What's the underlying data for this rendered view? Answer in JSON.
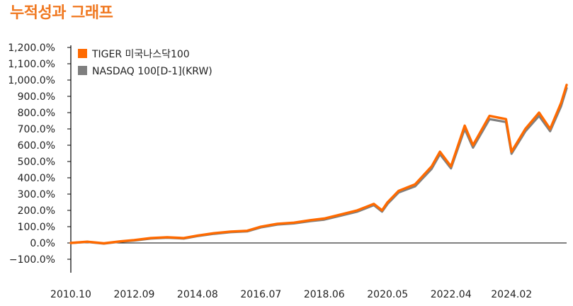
{
  "title": "누적성과 그래프",
  "colors": {
    "title": "#f07820",
    "tiger": "#ff6a00",
    "nasdaq": "#7f7f7f",
    "axis": "#000000"
  },
  "chart_data": {
    "type": "line",
    "title": "누적성과 그래프",
    "xlabel": "",
    "ylabel": "",
    "ylim": [
      -100,
      1200
    ],
    "xlim": [
      "2010.10",
      "2025.10"
    ],
    "y_ticks": [
      1200,
      1100,
      1000,
      900,
      800,
      700,
      600,
      500,
      400,
      300,
      200,
      100,
      0,
      -100
    ],
    "y_tick_labels": [
      "1,200.0%",
      "1,100.0%",
      "1,000.0%",
      "900.0%",
      "800.0%",
      "700.0%",
      "600.0%",
      "500.0%",
      "400.0%",
      "300.0%",
      "200.0%",
      "100.0%",
      "0.0%",
      "−100.0%"
    ],
    "x_tick_labels": [
      "2010.10",
      "2012.09",
      "2014.08",
      "2016.07",
      "2018.06",
      "2020.05",
      "2022.04",
      "2024.02"
    ],
    "grid": false,
    "legend_position": "top-left",
    "x": [
      "2010.10",
      "2011.04",
      "2011.10",
      "2012.04",
      "2012.09",
      "2013.03",
      "2013.09",
      "2014.03",
      "2014.08",
      "2015.02",
      "2015.08",
      "2016.02",
      "2016.07",
      "2017.01",
      "2017.07",
      "2018.01",
      "2018.06",
      "2018.12",
      "2019.06",
      "2019.12",
      "2020.03",
      "2020.05",
      "2020.09",
      "2021.03",
      "2021.09",
      "2021.12",
      "2022.04",
      "2022.09",
      "2022.12",
      "2023.06",
      "2023.12",
      "2024.02",
      "2024.07",
      "2024.12",
      "2025.04",
      "2025.08",
      "2025.10"
    ],
    "series": [
      {
        "name": "TIGER 미국나스닥100",
        "values": [
          0,
          8,
          -2,
          10,
          18,
          30,
          35,
          30,
          45,
          60,
          70,
          75,
          100,
          118,
          125,
          140,
          150,
          175,
          200,
          240,
          200,
          250,
          320,
          360,
          470,
          560,
          470,
          720,
          600,
          780,
          760,
          560,
          700,
          800,
          700,
          860,
          970
        ]
      },
      {
        "name": "NASDAQ 100[D-1](KRW)",
        "values": [
          0,
          6,
          -4,
          8,
          15,
          27,
          32,
          27,
          42,
          56,
          66,
          71,
          95,
          113,
          120,
          134,
          143,
          168,
          192,
          232,
          192,
          240,
          310,
          348,
          455,
          545,
          458,
          700,
          585,
          760,
          742,
          548,
          685,
          780,
          686,
          840,
          950
        ]
      }
    ]
  }
}
